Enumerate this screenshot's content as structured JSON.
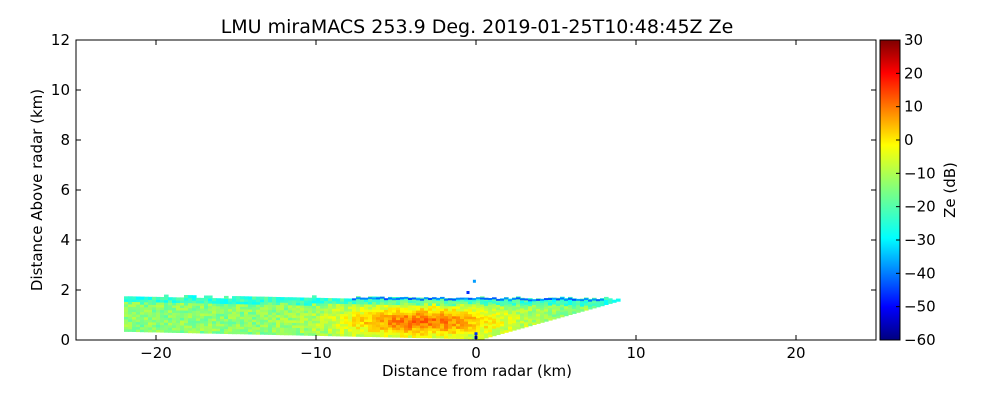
{
  "chart_data": {
    "type": "heatmap",
    "title": "LMU miraMACS 253.9 Deg. 2019-01-25T10:48:45Z  Ze",
    "xlabel": "Distance from radar (km)",
    "ylabel": "Distance Above radar  (km)",
    "colorbar_label": "Ze (dB)",
    "xlim": [
      -25,
      25
    ],
    "ylim": [
      0,
      12
    ],
    "x_ticks": [
      -20,
      -10,
      0,
      10,
      20
    ],
    "x_tick_labels": [
      "−20",
      "−10",
      "0",
      "10",
      "20"
    ],
    "y_ticks": [
      0,
      2,
      4,
      6,
      8,
      10,
      12
    ],
    "y_tick_labels": [
      "0",
      "2",
      "4",
      "6",
      "8",
      "10",
      "12"
    ],
    "clim": [
      -60,
      30
    ],
    "colorbar_ticks": [
      -60,
      -50,
      -40,
      -30,
      -20,
      -10,
      0,
      10,
      20,
      30
    ],
    "colorbar_tick_labels": [
      "−60",
      "−50",
      "−40",
      "−30",
      "−20",
      "−10",
      "0",
      "10",
      "20",
      "30"
    ],
    "colormap": "jet",
    "echo_region": {
      "x_range_km": [
        -22,
        9
      ],
      "top_height_km": [
        1.7,
        1.6
      ],
      "base_height_km_near_left": 0.3,
      "dominant_ze_dB": [
        -20,
        5
      ],
      "core_ze_dB": 5
    }
  }
}
